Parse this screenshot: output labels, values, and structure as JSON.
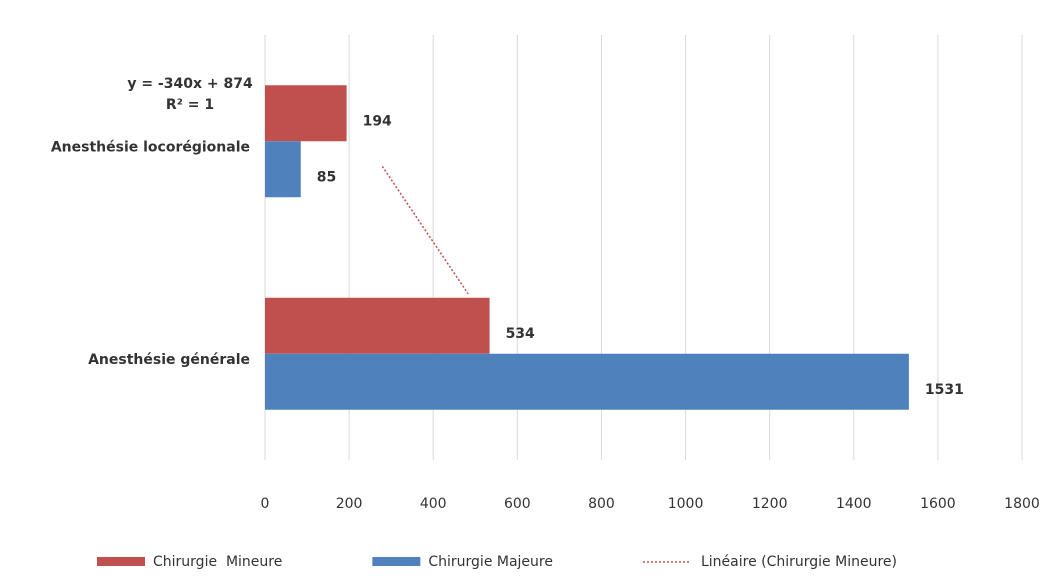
{
  "chart_data": {
    "type": "hbar",
    "categories": [
      "Anesthésie locorégionale",
      "Anesthésie générale"
    ],
    "series": [
      {
        "name": "Chirurgie  Mineure",
        "color": "#c0504d",
        "values": [
          194,
          534
        ]
      },
      {
        "name": "Chirurgie Majeure",
        "color": "#4f81bd",
        "values": [
          85,
          1531
        ]
      }
    ],
    "trendline": {
      "name": "Linéaire (Chirurgie Mineure)",
      "color": "#c0504d",
      "equation": "y = -340x + 874",
      "r_squared": "R² = 1"
    },
    "xlim": [
      0,
      1800
    ],
    "xticks": [
      0,
      200,
      400,
      600,
      800,
      1000,
      1200,
      1400,
      1600,
      1800
    ],
    "grid": true,
    "legend": "bottom"
  }
}
